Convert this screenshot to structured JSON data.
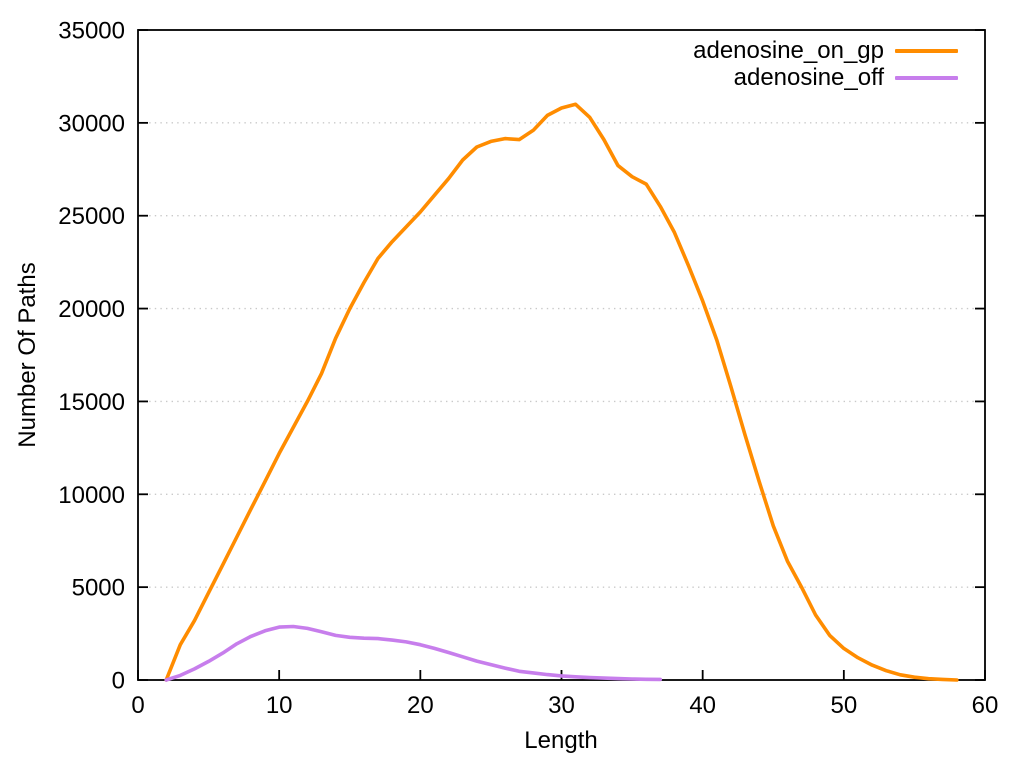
{
  "chart_data": {
    "type": "line",
    "title": "",
    "xlabel": "Length",
    "ylabel": "Number Of Paths",
    "xlim": [
      0,
      60
    ],
    "ylim": [
      0,
      35000
    ],
    "xticks": [
      0,
      10,
      20,
      30,
      40,
      50,
      60
    ],
    "yticks": [
      0,
      5000,
      10000,
      15000,
      20000,
      25000,
      30000,
      35000
    ],
    "grid": "horizontal dotted lines at y ticks",
    "legend_position": "inside top-right, no border, line sample right of label",
    "axis_color": "#000000",
    "grid_color": "#c9c9c9",
    "series": [
      {
        "name": "adenosine_on_gp",
        "color": "#ff8c00",
        "x": [
          2,
          3,
          4,
          5,
          6,
          7,
          8,
          9,
          10,
          11,
          12,
          13,
          14,
          15,
          16,
          17,
          18,
          19,
          20,
          21,
          22,
          23,
          24,
          25,
          26,
          27,
          28,
          29,
          30,
          31,
          32,
          33,
          34,
          35,
          36,
          37,
          38,
          39,
          40,
          41,
          42,
          43,
          44,
          45,
          46,
          47,
          48,
          49,
          50,
          51,
          52,
          53,
          54,
          55,
          56,
          57,
          58
        ],
        "y": [
          0,
          1900,
          3200,
          4700,
          6200,
          7700,
          9200,
          10700,
          12200,
          13600,
          15000,
          16500,
          18400,
          20000,
          21400,
          22700,
          23600,
          24400,
          25200,
          26100,
          27000,
          28000,
          28700,
          29000,
          29150,
          29100,
          29600,
          30400,
          30800,
          31000,
          30300,
          29100,
          27700,
          27100,
          26700,
          25500,
          24100,
          22300,
          20400,
          18300,
          15800,
          13200,
          10700,
          8300,
          6400,
          5000,
          3500,
          2400,
          1700,
          1200,
          800,
          500,
          280,
          150,
          70,
          30,
          0
        ]
      },
      {
        "name": "adenosine_off",
        "color": "#c77eec",
        "x": [
          2,
          3,
          4,
          5,
          6,
          7,
          8,
          9,
          10,
          11,
          12,
          13,
          14,
          15,
          16,
          17,
          18,
          19,
          20,
          21,
          22,
          23,
          24,
          25,
          26,
          27,
          28,
          29,
          30,
          31,
          32,
          33,
          34,
          35,
          36,
          37
        ],
        "y": [
          0,
          250,
          600,
          1000,
          1450,
          1950,
          2350,
          2650,
          2850,
          2880,
          2780,
          2600,
          2400,
          2300,
          2250,
          2230,
          2150,
          2050,
          1900,
          1700,
          1480,
          1250,
          1020,
          830,
          640,
          470,
          380,
          290,
          220,
          170,
          130,
          100,
          75,
          55,
          40,
          30
        ]
      }
    ]
  }
}
